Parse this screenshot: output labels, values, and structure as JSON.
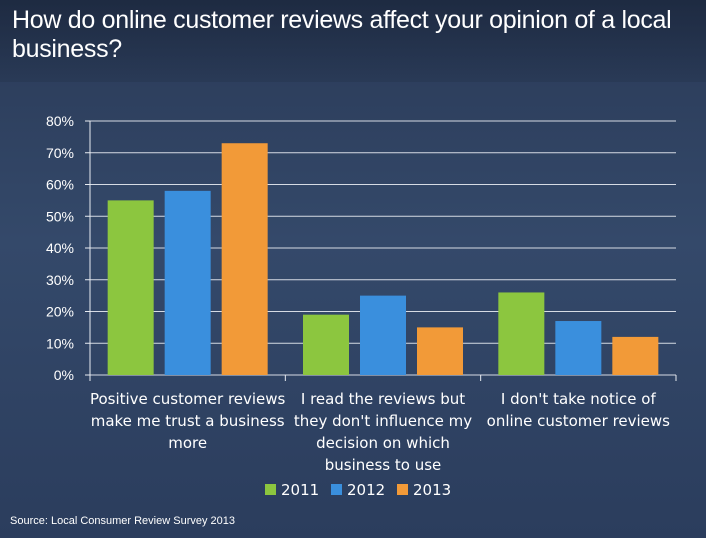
{
  "title": "How do online customer reviews affect your opinion of a local business?",
  "source": "Source: Local Consumer Review Survey 2013",
  "chart_data": {
    "type": "bar",
    "title": "How do online customer reviews affect your opinion of a local business?",
    "categories": [
      [
        "Positive customer reviews",
        "make me trust a business",
        "more"
      ],
      [
        "I read the reviews but",
        "they don't influence my",
        "decision on which",
        "business to use"
      ],
      [
        "I don't take notice of",
        "online customer reviews"
      ]
    ],
    "series": [
      {
        "name": "2011",
        "color": "#8cc63f",
        "values": [
          55,
          19,
          26
        ]
      },
      {
        "name": "2012",
        "color": "#3a8fdd",
        "values": [
          58,
          25,
          17
        ]
      },
      {
        "name": "2013",
        "color": "#f29a38",
        "values": [
          73,
          15,
          12
        ]
      }
    ],
    "y_ticks": [
      "0%",
      "10%",
      "20%",
      "30%",
      "40%",
      "50%",
      "60%",
      "70%",
      "80%"
    ],
    "ylim": [
      0,
      80
    ],
    "grid": true,
    "legend": "bottom-center"
  }
}
